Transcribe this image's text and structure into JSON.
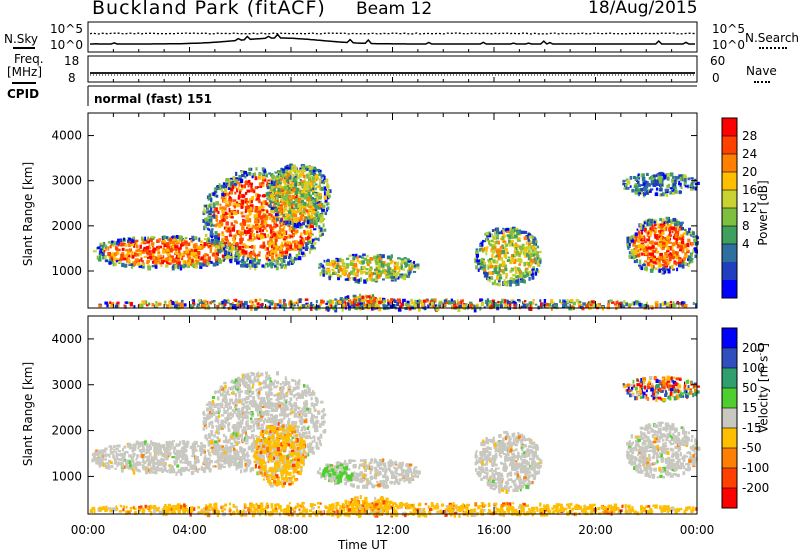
{
  "header": {
    "station": "Buckland Park (fitACF)",
    "beam": "Beam 12",
    "date": "18/Aug/2015"
  },
  "top_panels": {
    "nsky_label": "N.Sky",
    "nsky_ticks": [
      "10^5",
      "10^0"
    ],
    "nsearch_label": "N.Search",
    "nsearch_ticks": [
      "10^5",
      "10^0"
    ],
    "freq_label_1": "Freq.",
    "freq_label_2": "[MHz]",
    "freq_ticks": [
      "18",
      "8"
    ],
    "nave_label": "Nave",
    "nave_ticks": [
      "60",
      "0"
    ],
    "cpid_label": "CPID",
    "cpid_value": "normal (fast) 151"
  },
  "chart_data": [
    {
      "type": "heatmap",
      "name": "power-panel",
      "ylabel": "Slant Range [km]",
      "yticks": [
        "4000",
        "3000",
        "2000",
        "1000"
      ],
      "ylim": [
        180,
        4500
      ],
      "xlim": [
        0,
        24
      ],
      "colorbar": {
        "label": "Power [dB]",
        "ticks": [
          "28",
          "24",
          "20",
          "16",
          "12",
          "8",
          "4"
        ],
        "colors": [
          "#ff0000",
          "#ff4000",
          "#ff8000",
          "#ffbf00",
          "#c8d230",
          "#7fbf3f",
          "#3f9f5f",
          "#2f6fa0",
          "#1f3fbf",
          "#0000ff"
        ]
      },
      "regions": [
        {
          "t0": 0.1,
          "t1": 5.9,
          "r0": 1100,
          "r1": 1800,
          "level": "high"
        },
        {
          "t0": 4.5,
          "t1": 9.3,
          "r0": 1100,
          "r1": 3300,
          "level": "high"
        },
        {
          "t0": 7.0,
          "t1": 9.5,
          "r0": 2000,
          "r1": 3400,
          "level": "mid"
        },
        {
          "t0": 9.0,
          "t1": 13.0,
          "r0": 800,
          "r1": 1400,
          "level": "mid"
        },
        {
          "t0": 9.8,
          "t1": 11.8,
          "r0": 180,
          "r1": 500,
          "level": "high"
        },
        {
          "t0": 15.2,
          "t1": 17.8,
          "r0": 700,
          "r1": 2000,
          "level": "mid"
        },
        {
          "t0": 21.2,
          "t1": 24.0,
          "r0": 1000,
          "r1": 2200,
          "level": "high"
        },
        {
          "t0": 21.0,
          "t1": 24.0,
          "r0": 2700,
          "r1": 3200,
          "level": "low"
        },
        {
          "t0": 0.0,
          "t1": 24.0,
          "r0": 180,
          "r1": 400,
          "level": "mixed"
        }
      ]
    },
    {
      "type": "heatmap",
      "name": "velocity-panel",
      "ylabel": "Slant Range [km]",
      "yticks": [
        "4000",
        "3000",
        "2000",
        "1000"
      ],
      "ylim": [
        180,
        4500
      ],
      "xlim": [
        0,
        24
      ],
      "xticks": [
        "00:00",
        "04:00",
        "08:00",
        "12:00",
        "16:00",
        "20:00",
        "00:00"
      ],
      "xlabel": "Time UT",
      "colorbar": {
        "label": "Velocity [m s",
        "label_sup": "-1",
        "label_end": "]",
        "ticks": [
          "200",
          "100",
          "50",
          "15",
          "-15",
          "-50",
          "-100",
          "-200"
        ],
        "colors": [
          "#0000ff",
          "#2f4fbf",
          "#2f9f6f",
          "#4fcf2f",
          "#c8c8c0",
          "#ffbf00",
          "#ff8000",
          "#ff4000",
          "#ff0000"
        ]
      },
      "regions": [
        {
          "t0": 0.1,
          "t1": 5.9,
          "r0": 1100,
          "r1": 1800,
          "level": "grey"
        },
        {
          "t0": 4.5,
          "t1": 9.3,
          "r0": 1100,
          "r1": 3300,
          "level": "grey"
        },
        {
          "t0": 6.5,
          "t1": 8.5,
          "r0": 800,
          "r1": 2200,
          "level": "orange"
        },
        {
          "t0": 9.0,
          "t1": 13.0,
          "r0": 800,
          "r1": 1400,
          "level": "grey"
        },
        {
          "t0": 9.2,
          "t1": 10.4,
          "r0": 900,
          "r1": 1300,
          "level": "green"
        },
        {
          "t0": 10.0,
          "t1": 12.0,
          "r0": 180,
          "r1": 600,
          "level": "orange"
        },
        {
          "t0": 15.2,
          "t1": 17.8,
          "r0": 700,
          "r1": 2000,
          "level": "grey"
        },
        {
          "t0": 21.2,
          "t1": 24.0,
          "r0": 1000,
          "r1": 2200,
          "level": "grey"
        },
        {
          "t0": 21.0,
          "t1": 24.0,
          "r0": 2700,
          "r1": 3200,
          "level": "mixed"
        },
        {
          "t0": 0.0,
          "t1": 24.0,
          "r0": 180,
          "r1": 450,
          "level": "orange"
        }
      ]
    }
  ]
}
